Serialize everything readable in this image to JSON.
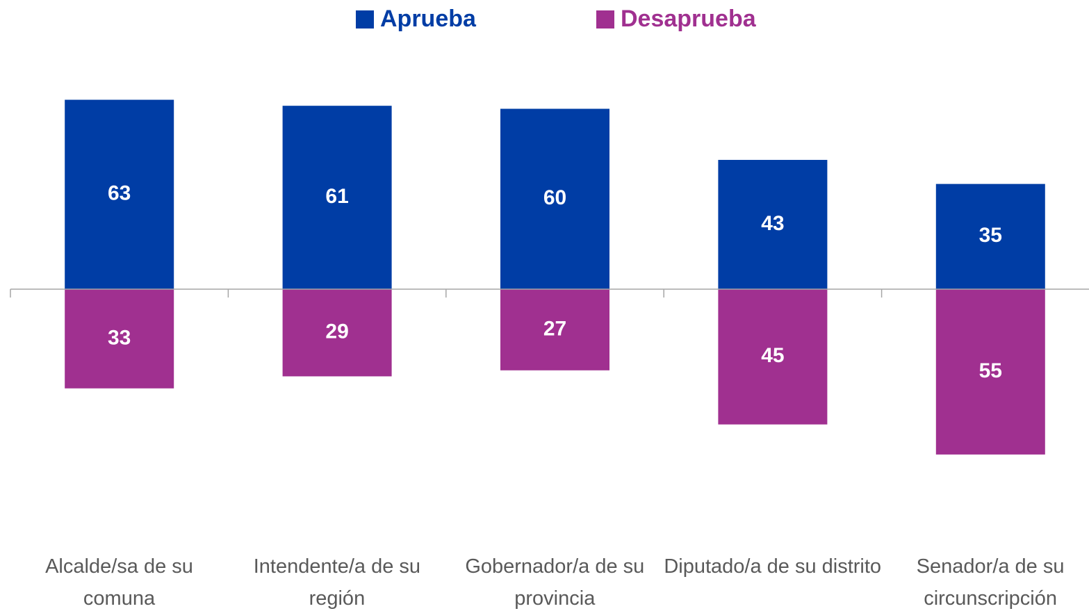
{
  "chart_data": {
    "type": "bar",
    "categories": [
      "Alcalde/sa de su comuna",
      "Intendente/a de su región",
      "Gobernador/a de su provincia",
      "Diputado/a de su distrito",
      "Senador/a de su circunscripción"
    ],
    "series": [
      {
        "name": "Aprueba",
        "color": "#003da5",
        "values": [
          63,
          61,
          60,
          43,
          35
        ]
      },
      {
        "name": "Desaprueba",
        "color": "#a03090",
        "values": [
          -33,
          -29,
          -27,
          -45,
          -55
        ],
        "value_labels": [
          "33",
          "29",
          "27",
          "45",
          "55"
        ]
      }
    ],
    "ylim": [
      -80,
      80
    ]
  }
}
